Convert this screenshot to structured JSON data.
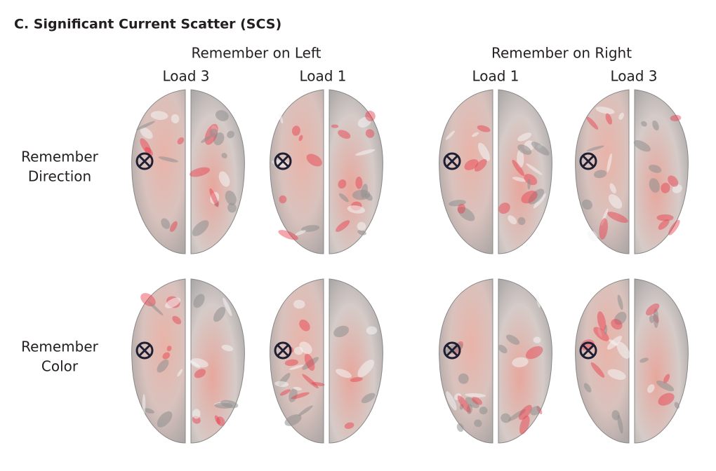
{
  "title": "C. Significant Current Scatter (SCS)",
  "column_groups": [
    {
      "label": "Remember on Left",
      "columns": [
        "Load 3",
        "Load 1"
      ]
    },
    {
      "label": "Remember on Right",
      "columns": [
        "Load 1",
        "Load 3"
      ]
    }
  ],
  "rows": [
    {
      "label": [
        "Remember",
        "Direction"
      ]
    },
    {
      "label": [
        "Remember",
        "Color"
      ]
    }
  ]
}
